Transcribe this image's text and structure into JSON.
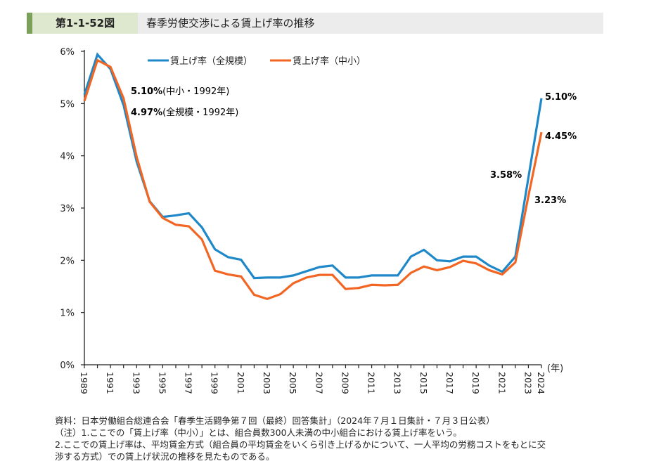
{
  "header": {
    "figure_number": "第1-1-52図",
    "title": "春季労使交渉による賃上げ率の推移"
  },
  "chart_data": {
    "type": "line",
    "title": "春季労使交渉による賃上げ率の推移",
    "xlabel": "(年)",
    "ylabel": "",
    "ylim": [
      0,
      6
    ],
    "yticks": [
      "0%",
      "1%",
      "2%",
      "3%",
      "4%",
      "5%",
      "6%"
    ],
    "xtick_labels": [
      "1989",
      "1991",
      "1993",
      "1995",
      "1997",
      "1999",
      "2001",
      "2003",
      "2005",
      "2007",
      "2009",
      "2011",
      "2013",
      "2015",
      "2017",
      "2019",
      "2021",
      "2023",
      "2024"
    ],
    "grid": false,
    "legend_position": "top",
    "x": [
      1989,
      1990,
      1991,
      1992,
      1993,
      1994,
      1995,
      1996,
      1997,
      1998,
      1999,
      2000,
      2001,
      2002,
      2003,
      2004,
      2005,
      2006,
      2007,
      2008,
      2009,
      2010,
      2011,
      2012,
      2013,
      2014,
      2015,
      2016,
      2017,
      2018,
      2019,
      2020,
      2021,
      2022,
      2023,
      2024
    ],
    "series": [
      {
        "name": "賃上げ率（全規模）",
        "color": "#1f88c9",
        "values": [
          5.17,
          5.94,
          5.66,
          4.97,
          3.89,
          3.13,
          2.83,
          2.86,
          2.9,
          2.63,
          2.21,
          2.06,
          2.01,
          1.66,
          1.67,
          1.67,
          1.71,
          1.79,
          1.87,
          1.9,
          1.67,
          1.67,
          1.71,
          1.71,
          1.71,
          2.07,
          2.2,
          2.0,
          1.98,
          2.07,
          2.07,
          1.9,
          1.78,
          2.07,
          3.58,
          5.1
        ]
      },
      {
        "name": "賃上げ率（中小）",
        "color": "#f26522",
        "values": [
          5.05,
          5.83,
          5.7,
          5.1,
          3.98,
          3.12,
          2.81,
          2.68,
          2.65,
          2.4,
          1.8,
          1.73,
          1.69,
          1.34,
          1.26,
          1.35,
          1.56,
          1.67,
          1.72,
          1.72,
          1.45,
          1.47,
          1.53,
          1.52,
          1.53,
          1.76,
          1.88,
          1.81,
          1.87,
          1.99,
          1.94,
          1.81,
          1.73,
          1.96,
          3.23,
          4.45
        ]
      }
    ],
    "annotations": [
      {
        "value": "5.10%",
        "note": "(中小・1992年)"
      },
      {
        "value": "4.97%",
        "note": "(全規模・1992年)"
      },
      {
        "value": "5.10%",
        "note": ""
      },
      {
        "value": "4.45%",
        "note": ""
      },
      {
        "value": "3.58%",
        "note": ""
      },
      {
        "value": "3.23%",
        "note": ""
      }
    ]
  },
  "footnotes": [
    "資料：日本労働組合総連合会「春季生活闘争第７回（最終）回答集計」（2024年７月１日集計・７月３日公表）",
    "（注）1.ここでの「賃上げ率（中小）」とは、組合員数300人未満の中小組合における賃上げ率をいう。",
    "2.ここでの賃上げ率は、平均賃金方式（組合員の平均賃金をいくら引き上げるかについて、一人平均の労務コストをもとに交",
    "渉する方式）での賃上げ状況の推移を見たものである。"
  ]
}
